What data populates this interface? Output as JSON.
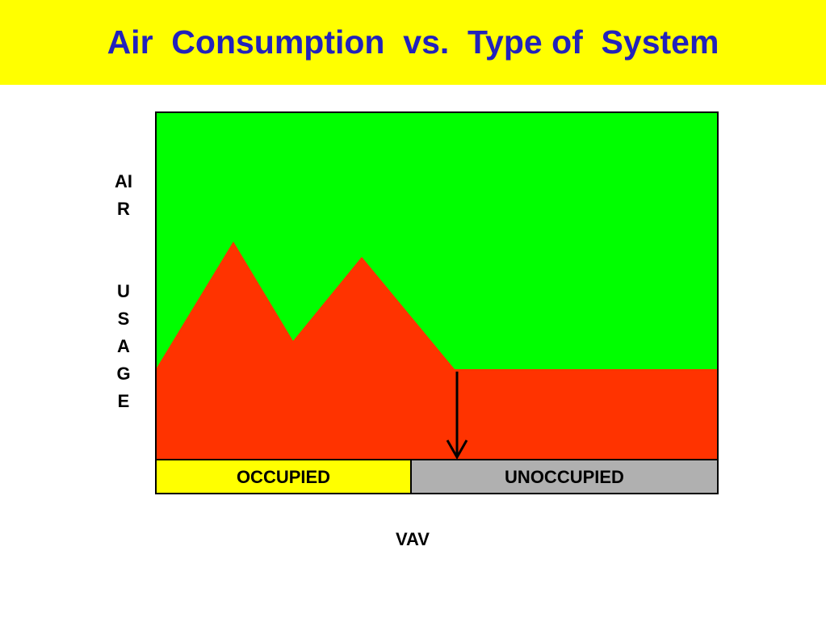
{
  "header": {
    "title": "Air  Consumption  vs.  Type of  System"
  },
  "diagram": {
    "y_label": [
      "AIR",
      "USAGE"
    ],
    "periods": [
      "OCCUPIED",
      "UNOCCUPIED"
    ],
    "x_label": "VAV"
  }
}
